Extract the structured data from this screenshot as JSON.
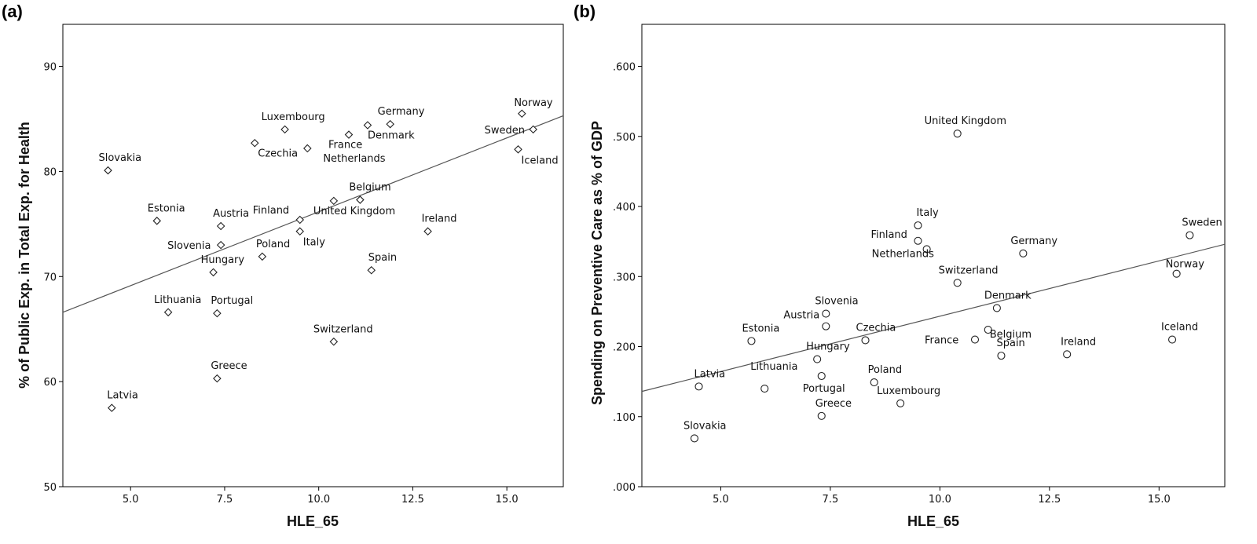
{
  "chart_data": [
    {
      "type": "scatter",
      "panel_label": "(a)",
      "xlabel": "HLE_65",
      "ylabel": "% of Public Exp. in Total Exp. for Health",
      "xlim": [
        3.2,
        16.5
      ],
      "ylim": [
        50,
        94
      ],
      "xticks": [
        5.0,
        7.5,
        10.0,
        12.5,
        15.0
      ],
      "xtick_labels": [
        "5.0",
        "7.5",
        "10.0",
        "12.5",
        "15.0"
      ],
      "yticks": [
        50,
        60,
        70,
        80,
        90
      ],
      "ytick_labels": [
        "50",
        "60",
        "70",
        "80",
        "90"
      ],
      "marker": "diamond",
      "fit_line": {
        "x": [
          3.2,
          16.5
        ],
        "y": [
          66.6,
          85.3
        ]
      },
      "points": [
        {
          "label": "Slovakia",
          "x": 4.4,
          "y": 80.1
        },
        {
          "label": "Latvia",
          "x": 4.5,
          "y": 57.5
        },
        {
          "label": "Estonia",
          "x": 5.7,
          "y": 75.3
        },
        {
          "label": "Lithuania",
          "x": 6.0,
          "y": 66.6
        },
        {
          "label": "Hungary",
          "x": 7.2,
          "y": 70.4
        },
        {
          "label": "Slovenia",
          "x": 7.4,
          "y": 73.0
        },
        {
          "label": "Austria",
          "x": 7.4,
          "y": 74.8
        },
        {
          "label": "Portugal",
          "x": 7.3,
          "y": 66.5
        },
        {
          "label": "Greece",
          "x": 7.3,
          "y": 60.3
        },
        {
          "label": "Czechia",
          "x": 8.3,
          "y": 82.7
        },
        {
          "label": "Poland",
          "x": 8.5,
          "y": 71.9
        },
        {
          "label": "Luxembourg",
          "x": 9.1,
          "y": 84.0
        },
        {
          "label": "Netherlands",
          "x": 9.7,
          "y": 82.2
        },
        {
          "label": "Finland",
          "x": 9.5,
          "y": 75.4
        },
        {
          "label": "Italy",
          "x": 9.5,
          "y": 74.3
        },
        {
          "label": "United Kingdom",
          "x": 10.4,
          "y": 77.2
        },
        {
          "label": "Switzerland",
          "x": 10.4,
          "y": 63.8
        },
        {
          "label": "France",
          "x": 10.8,
          "y": 83.5
        },
        {
          "label": "Belgium",
          "x": 11.1,
          "y": 77.3
        },
        {
          "label": "Denmark",
          "x": 11.3,
          "y": 84.4
        },
        {
          "label": "Spain",
          "x": 11.4,
          "y": 70.6
        },
        {
          "label": "Germany",
          "x": 11.9,
          "y": 84.5
        },
        {
          "label": "Ireland",
          "x": 12.9,
          "y": 74.3
        },
        {
          "label": "Norway",
          "x": 15.4,
          "y": 85.5
        },
        {
          "label": "Sweden",
          "x": 15.7,
          "y": 84.0
        },
        {
          "label": "Iceland",
          "x": 15.3,
          "y": 82.1
        }
      ]
    },
    {
      "type": "scatter",
      "panel_label": "(b)",
      "xlabel": "HLE_65",
      "ylabel": "Spending on Preventive Care as % of GDP",
      "xlim": [
        3.2,
        16.5
      ],
      "ylim": [
        0.0,
        0.66
      ],
      "xticks": [
        5.0,
        7.5,
        10.0,
        12.5,
        15.0
      ],
      "xtick_labels": [
        "5.0",
        "7.5",
        "10.0",
        "12.5",
        "15.0"
      ],
      "yticks": [
        0.0,
        0.1,
        0.2,
        0.3,
        0.4,
        0.5,
        0.6
      ],
      "ytick_labels": [
        ".000",
        ".100",
        ".200",
        ".300",
        ".400",
        ".500",
        ".600"
      ],
      "marker": "circle",
      "fit_line": {
        "x": [
          3.2,
          16.5
        ],
        "y": [
          0.136,
          0.346
        ]
      },
      "points": [
        {
          "label": "Slovakia",
          "x": 4.4,
          "y": 0.069
        },
        {
          "label": "Latvia",
          "x": 4.5,
          "y": 0.143
        },
        {
          "label": "Estonia",
          "x": 5.7,
          "y": 0.208
        },
        {
          "label": "Lithuania",
          "x": 6.0,
          "y": 0.14
        },
        {
          "label": "Hungary",
          "x": 7.2,
          "y": 0.182
        },
        {
          "label": "Portugal",
          "x": 7.3,
          "y": 0.158
        },
        {
          "label": "Greece",
          "x": 7.3,
          "y": 0.101
        },
        {
          "label": "Slovenia",
          "x": 7.4,
          "y": 0.247
        },
        {
          "label": "Austria",
          "x": 7.4,
          "y": 0.229
        },
        {
          "label": "Czechia",
          "x": 8.3,
          "y": 0.209
        },
        {
          "label": "Poland",
          "x": 8.5,
          "y": 0.149
        },
        {
          "label": "Luxembourg",
          "x": 9.1,
          "y": 0.119
        },
        {
          "label": "Finland",
          "x": 9.5,
          "y": 0.351
        },
        {
          "label": "Italy",
          "x": 9.5,
          "y": 0.373
        },
        {
          "label": "Netherlands",
          "x": 9.7,
          "y": 0.339
        },
        {
          "label": "United Kingdom",
          "x": 10.4,
          "y": 0.504
        },
        {
          "label": "Switzerland",
          "x": 10.4,
          "y": 0.291
        },
        {
          "label": "France",
          "x": 10.8,
          "y": 0.21
        },
        {
          "label": "Belgium",
          "x": 11.1,
          "y": 0.224
        },
        {
          "label": "Denmark",
          "x": 11.3,
          "y": 0.255
        },
        {
          "label": "Spain",
          "x": 11.4,
          "y": 0.187
        },
        {
          "label": "Germany",
          "x": 11.9,
          "y": 0.333
        },
        {
          "label": "Ireland",
          "x": 12.9,
          "y": 0.189
        },
        {
          "label": "Iceland",
          "x": 15.3,
          "y": 0.21
        },
        {
          "label": "Norway",
          "x": 15.4,
          "y": 0.304
        },
        {
          "label": "Sweden",
          "x": 15.7,
          "y": 0.359
        }
      ]
    }
  ]
}
